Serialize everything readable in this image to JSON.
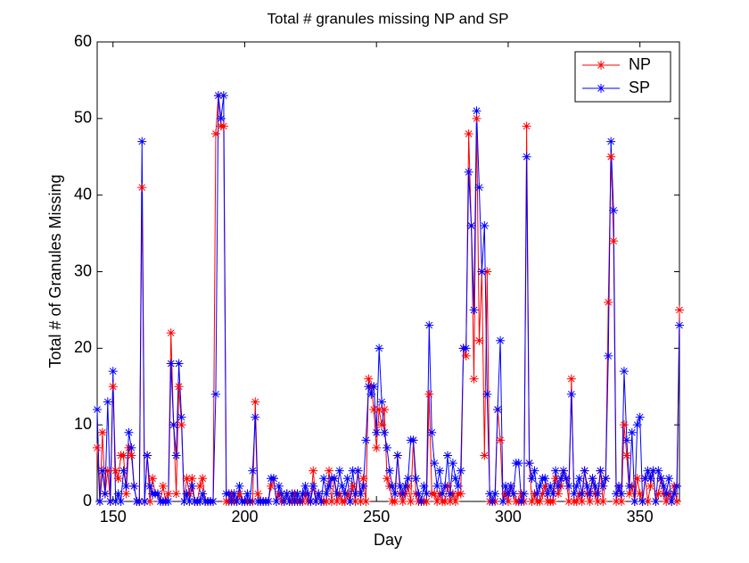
{
  "chart_data": {
    "type": "line",
    "title": "Total # granules missing NP and SP",
    "x_label": "Day",
    "y_label": "Total # of Granules Missing",
    "x": [
      144,
      145,
      146,
      147,
      148,
      149,
      150,
      151,
      152,
      153,
      154,
      155,
      156,
      157,
      158,
      159,
      160,
      161,
      162,
      163,
      164,
      165,
      166,
      167,
      168,
      169,
      170,
      171,
      172,
      173,
      174,
      175,
      176,
      177,
      178,
      179,
      180,
      181,
      182,
      183,
      184,
      185,
      186,
      187,
      188,
      189,
      190,
      191,
      192,
      193,
      194,
      195,
      196,
      197,
      198,
      199,
      200,
      201,
      202,
      203,
      204,
      205,
      206,
      207,
      208,
      209,
      210,
      211,
      212,
      213,
      214,
      215,
      216,
      217,
      218,
      219,
      220,
      221,
      222,
      223,
      224,
      225,
      226,
      227,
      228,
      229,
      230,
      231,
      232,
      233,
      234,
      235,
      236,
      237,
      238,
      239,
      240,
      241,
      242,
      243,
      244,
      245,
      246,
      247,
      248,
      249,
      250,
      251,
      252,
      253,
      254,
      255,
      256,
      257,
      258,
      259,
      260,
      261,
      262,
      263,
      264,
      265,
      266,
      267,
      268,
      269,
      270,
      271,
      272,
      273,
      274,
      275,
      276,
      277,
      278,
      279,
      280,
      281,
      282,
      283,
      284,
      285,
      286,
      287,
      288,
      289,
      290,
      291,
      292,
      293,
      294,
      295,
      296,
      297,
      298,
      299,
      300,
      301,
      302,
      303,
      304,
      305,
      306,
      307,
      308,
      309,
      310,
      311,
      312,
      313,
      314,
      315,
      316,
      317,
      318,
      319,
      320,
      321,
      322,
      323,
      324,
      325,
      326,
      327,
      328,
      329,
      330,
      331,
      332,
      333,
      334,
      335,
      336,
      337,
      338,
      339,
      340,
      341,
      342,
      343,
      344,
      345,
      346,
      347,
      348,
      349,
      350,
      351,
      352,
      353,
      354,
      355,
      356,
      357,
      358,
      359,
      360,
      361,
      362,
      363,
      364,
      365
    ],
    "series": [
      {
        "name": "NP",
        "color": "#ff0000",
        "values": [
          7,
          0,
          9,
          1,
          4,
          0,
          15,
          4,
          3,
          6,
          6,
          1,
          7,
          6,
          2,
          0,
          0,
          41,
          0,
          6,
          0,
          3,
          1,
          1,
          0,
          2,
          0,
          1,
          22,
          10,
          1,
          15,
          10,
          0,
          3,
          1,
          3,
          0,
          0,
          2,
          3,
          0,
          0,
          0,
          0,
          48,
          53,
          49,
          49,
          0,
          0,
          1,
          0,
          0,
          1,
          0,
          0,
          0,
          0,
          0,
          13,
          1,
          0,
          0,
          0,
          0,
          2,
          3,
          0,
          1,
          0,
          0,
          1,
          0,
          0,
          1,
          0,
          0,
          0,
          1,
          0,
          0,
          4,
          0,
          1,
          0,
          0,
          0,
          4,
          0,
          3,
          0,
          1,
          0,
          0,
          1,
          0,
          2,
          0,
          4,
          0,
          3,
          0,
          16,
          15,
          12,
          7,
          12,
          10,
          12,
          3,
          2,
          0,
          0,
          6,
          1,
          0,
          1,
          2,
          0,
          8,
          1,
          0,
          0,
          0,
          0,
          14,
          1,
          1,
          0,
          1,
          0,
          0,
          2,
          0,
          1,
          0,
          1,
          1,
          20,
          19,
          48,
          36,
          16,
          50,
          21,
          30,
          6,
          30,
          0,
          0,
          0,
          12,
          8,
          0,
          1,
          0,
          2,
          1,
          0,
          0,
          1,
          0,
          49,
          5,
          0,
          1,
          0,
          0,
          1,
          2,
          0,
          0,
          0,
          3,
          1,
          2,
          4,
          3,
          0,
          16,
          0,
          0,
          1,
          0,
          4,
          1,
          0,
          3,
          1,
          0,
          4,
          0,
          3,
          26,
          45,
          34,
          0,
          2,
          0,
          10,
          6,
          1,
          2,
          0,
          3,
          1,
          0,
          3,
          0,
          2,
          4,
          0,
          1,
          3,
          1,
          0,
          1,
          0,
          2,
          0,
          25
        ]
      },
      {
        "name": "SP",
        "color": "#0000ff",
        "values": [
          12,
          0,
          4,
          1,
          13,
          0,
          17,
          0,
          1,
          0,
          4,
          2,
          9,
          7,
          2,
          0,
          0,
          47,
          0,
          6,
          2,
          1,
          1,
          1,
          0,
          0,
          0,
          0,
          18,
          10,
          6,
          18,
          11,
          0,
          1,
          0,
          2,
          0,
          0,
          0,
          1,
          0,
          0,
          0,
          0,
          14,
          53,
          50,
          53,
          1,
          1,
          0,
          1,
          0,
          2,
          0,
          0,
          1,
          0,
          4,
          11,
          0,
          0,
          0,
          0,
          0,
          3,
          3,
          0,
          2,
          1,
          0,
          1,
          0,
          1,
          0,
          1,
          0,
          1,
          2,
          1,
          0,
          2,
          0,
          1,
          0,
          3,
          1,
          2,
          3,
          3,
          1,
          4,
          2,
          1,
          3,
          0,
          4,
          1,
          4,
          1,
          2,
          8,
          15,
          14,
          15,
          9,
          20,
          13,
          9,
          7,
          4,
          2,
          1,
          6,
          2,
          1,
          2,
          3,
          8,
          8,
          3,
          1,
          0,
          2,
          1,
          23,
          9,
          5,
          2,
          4,
          1,
          2,
          6,
          1,
          5,
          3,
          2,
          4,
          20,
          20,
          43,
          36,
          25,
          51,
          41,
          30,
          36,
          14,
          1,
          0,
          1,
          12,
          21,
          0,
          2,
          1,
          2,
          1,
          5,
          5,
          0,
          1,
          45,
          5,
          3,
          4,
          1,
          2,
          3,
          3,
          1,
          2,
          1,
          4,
          2,
          3,
          4,
          3,
          2,
          14,
          1,
          2,
          3,
          1,
          4,
          2,
          1,
          3,
          2,
          1,
          4,
          2,
          3,
          19,
          47,
          38,
          1,
          2,
          1,
          17,
          8,
          2,
          9,
          0,
          10,
          11,
          0,
          3,
          4,
          3,
          4,
          0,
          4,
          3,
          2,
          1,
          3,
          0,
          1,
          2,
          23
        ]
      }
    ],
    "xlim": [
      144,
      365
    ],
    "xticks": [
      150,
      200,
      250,
      300,
      350
    ],
    "ylim": [
      0,
      60
    ],
    "yticks": [
      0,
      10,
      20,
      30,
      40,
      50,
      60
    ],
    "legend": "top-right"
  }
}
